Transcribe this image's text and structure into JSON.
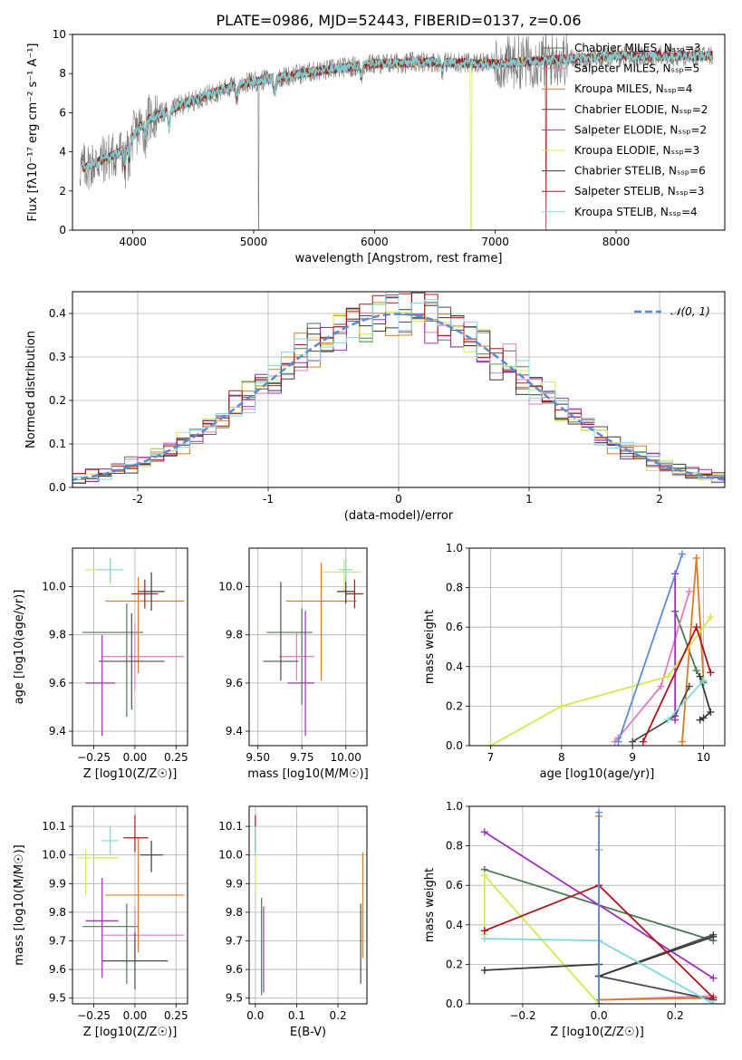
{
  "title": "PLATE=0986, MJD=52443, FIBERID=0137, z=0.06",
  "series_colors": [
    "#4c7a52",
    "#e27bc0",
    "#e07a20",
    "#4d4d4d",
    "#9e2fb8",
    "#d4e84e",
    "#3a3a3a",
    "#b0141c",
    "#7fd8dc"
  ],
  "chart_data": [
    {
      "id": "spectrum",
      "type": "line",
      "xlabel": "wavelength [Angstrom, rest frame]",
      "ylabel": "Flux [fλ10⁻¹⁷ erg cm⁻² s⁻¹ A⁻¹]",
      "xlim": [
        3500,
        8900
      ],
      "ylim": [
        0,
        10
      ],
      "xticks": [
        4000,
        5000,
        6000,
        7000,
        8000
      ],
      "yticks": [
        0,
        2,
        4,
        6,
        8,
        10
      ],
      "grid": false,
      "legend": "right",
      "continuum_anchors": [
        [
          3600,
          3.2
        ],
        [
          3900,
          4.0
        ],
        [
          4100,
          5.6
        ],
        [
          4400,
          6.4
        ],
        [
          4800,
          7.3
        ],
        [
          5000,
          7.6
        ],
        [
          5500,
          8.1
        ],
        [
          6000,
          8.5
        ],
        [
          6500,
          8.6
        ],
        [
          7000,
          8.5
        ],
        [
          7500,
          8.7
        ],
        [
          8000,
          8.9
        ],
        [
          8800,
          8.9
        ]
      ],
      "absorption_features": [
        [
          3934,
          1.2
        ],
        [
          3969,
          1.0
        ],
        [
          4101,
          0.8
        ],
        [
          4300,
          0.9
        ],
        [
          4861,
          0.7
        ],
        [
          5175,
          0.8
        ],
        [
          5890,
          0.6
        ],
        [
          6563,
          0.4
        ]
      ],
      "dropouts": [
        {
          "x": 5040,
          "series": "obs"
        },
        {
          "x": 6800,
          "series": "kroupa_elodie"
        },
        {
          "x": 7420,
          "series": "salpeter_stelib"
        }
      ],
      "series": [
        {
          "name": "Chabrier MILES, N_SSP=3"
        },
        {
          "name": "Salpeter MILES, N_SSP=5"
        },
        {
          "name": "Kroupa MILES, N_SSP=4"
        },
        {
          "name": "Chabrier ELODIE, N_SSP=2"
        },
        {
          "name": "Salpeter ELODIE, N_SSP=2"
        },
        {
          "name": "Kroupa ELODIE, N_SSP=3"
        },
        {
          "name": "Chabrier STELIB, N_SSP=6"
        },
        {
          "name": "Salpeter STELIB, N_SSP=3"
        },
        {
          "name": "Kroupa STELIB, N_SSP=4"
        }
      ]
    },
    {
      "id": "residuals",
      "type": "histogram",
      "xlabel": "(data-model)/error",
      "ylabel": "Normed distribution",
      "xlim": [
        -2.5,
        2.5
      ],
      "ylim": [
        0,
        0.45
      ],
      "xticks": [
        -2,
        -1,
        0,
        1,
        2
      ],
      "yticks": [
        0.0,
        0.1,
        0.2,
        0.3,
        0.4
      ],
      "grid": true,
      "bin_width": 0.1,
      "legend": "top-right",
      "reference_curve": {
        "name": "𝒩(0, 1)",
        "mean": 0,
        "sigma": 1
      }
    },
    {
      "id": "age-vs-Z",
      "type": "errorbar",
      "xlabel": "Z [log10(Z/Z☉)]",
      "ylabel": "age  [log10(age/yr)]",
      "xlim": [
        -0.38,
        0.32
      ],
      "ylim": [
        9.34,
        10.16
      ],
      "xticks": [
        -0.25,
        0.0,
        0.25
      ],
      "xtick_labels": [
        "−0.25",
        "0.00",
        "0.25"
      ],
      "yticks": [
        9.4,
        9.6,
        9.8,
        10.0
      ],
      "ytick_labels": [
        "9.4",
        "9.6",
        "9.8",
        "10.0"
      ],
      "grid": true,
      "points": [
        {
          "c": 0,
          "x": -0.05,
          "xerr": [
            0.27,
            0.1
          ],
          "y": 9.81,
          "yerr": [
            0.35,
            0.12
          ]
        },
        {
          "c": 1,
          "x": 0.0,
          "xerr": [
            0.2,
            0.3
          ],
          "y": 9.71,
          "yerr": [
            0.14,
            0.14
          ]
        },
        {
          "c": 2,
          "x": 0.02,
          "xerr": [
            0.2,
            0.28
          ],
          "y": 9.94,
          "yerr": [
            0.3,
            0.1
          ]
        },
        {
          "c": 3,
          "x": -0.02,
          "xerr": [
            0.2,
            0.2
          ],
          "y": 9.69,
          "yerr": [
            0.2,
            0.2
          ]
        },
        {
          "c": 4,
          "x": -0.2,
          "xerr": [
            0.1,
            0.08
          ],
          "y": 9.6,
          "yerr": [
            0.22,
            0.2
          ]
        },
        {
          "c": 5,
          "x": -0.15,
          "xerr": [
            0.15,
            0.05
          ],
          "y": 10.07,
          "yerr": [
            0.06,
            0.05
          ]
        },
        {
          "c": 6,
          "x": 0.1,
          "xerr": [
            0.08,
            0.08
          ],
          "y": 9.98,
          "yerr": [
            0.08,
            0.08
          ]
        },
        {
          "c": 7,
          "x": 0.06,
          "xerr": [
            0.08,
            0.08
          ],
          "y": 9.97,
          "yerr": [
            0.06,
            0.06
          ]
        },
        {
          "c": 8,
          "x": -0.15,
          "xerr": [
            0.08,
            0.08
          ],
          "y": 10.07,
          "yerr": [
            0.05,
            0.05
          ]
        }
      ]
    },
    {
      "id": "age-vs-mass",
      "type": "errorbar",
      "xlabel": "mass [log10(M/M☉)]",
      "xlim": [
        9.45,
        10.12
      ],
      "ylim": [
        9.34,
        10.16
      ],
      "xticks": [
        9.5,
        9.75,
        10.0
      ],
      "xtick_labels": [
        "9.50",
        "9.75",
        "10.00"
      ],
      "yticks": [
        9.4,
        9.6,
        9.8,
        10.0
      ],
      "ytick_labels": [
        "9.4",
        "9.6",
        "9.8",
        "10.0"
      ],
      "grid": true,
      "points": [
        {
          "c": 0,
          "x": 9.75,
          "xerr": [
            0.2,
            0.06
          ],
          "y": 9.81,
          "yerr": [
            0.3,
            0.1
          ]
        },
        {
          "c": 1,
          "x": 9.72,
          "xerr": [
            0.1,
            0.1
          ],
          "y": 9.71,
          "yerr": [
            0.1,
            0.1
          ]
        },
        {
          "c": 2,
          "x": 9.86,
          "xerr": [
            0.2,
            0.2
          ],
          "y": 9.94,
          "yerr": [
            0.33,
            0.16
          ]
        },
        {
          "c": 3,
          "x": 9.63,
          "xerr": [
            0.1,
            0.1
          ],
          "y": 9.69,
          "yerr": [
            0.08,
            0.33
          ]
        },
        {
          "c": 4,
          "x": 9.77,
          "xerr": [
            0.1,
            0.05
          ],
          "y": 9.6,
          "yerr": [
            0.22,
            0.3
          ]
        },
        {
          "c": 5,
          "x": 9.99,
          "xerr": [
            0.12,
            0.1
          ],
          "y": 10.06,
          "yerr": [
            0.08,
            0.05
          ]
        },
        {
          "c": 6,
          "x": 10.0,
          "xerr": [
            0.05,
            0.05
          ],
          "y": 9.98,
          "yerr": [
            0.05,
            0.06
          ]
        },
        {
          "c": 7,
          "x": 10.05,
          "xerr": [
            0.05,
            0.05
          ],
          "y": 9.97,
          "yerr": [
            0.06,
            0.06
          ]
        },
        {
          "c": 8,
          "x": 10.0,
          "xerr": [
            0.04,
            0.04
          ],
          "y": 10.07,
          "yerr": [
            0.05,
            0.05
          ]
        }
      ]
    },
    {
      "id": "weight-vs-age",
      "type": "line",
      "xlabel": "age  [log10(age/yr)]",
      "ylabel": "mass weight",
      "xlim": [
        6.7,
        10.3
      ],
      "ylim": [
        0,
        1
      ],
      "xticks": [
        7,
        8,
        9,
        10
      ],
      "yticks": [
        0.0,
        0.2,
        0.4,
        0.6,
        0.8,
        1.0
      ],
      "ytick_labels": [
        "0.0",
        "0.2",
        "0.4",
        "0.6",
        "0.8",
        "1.0"
      ],
      "grid": true,
      "series": [
        {
          "c": 0,
          "points": [
            [
              9.6,
              0.68
            ],
            [
              9.9,
              0.38
            ],
            [
              10.0,
              0.32
            ]
          ]
        },
        {
          "c": 1,
          "points": [
            [
              8.75,
              0.02
            ],
            [
              8.8,
              0.04
            ],
            [
              9.4,
              0.3
            ],
            [
              9.8,
              0.78
            ]
          ]
        },
        {
          "c": 2,
          "points": [
            [
              9.7,
              0.02
            ],
            [
              9.9,
              0.95
            ],
            [
              10.0,
              0.33
            ]
          ]
        },
        {
          "c": 3,
          "points": [
            [
              9.0,
              0.02
            ],
            [
              9.6,
              0.15
            ],
            [
              9.8,
              0.3
            ]
          ]
        },
        {
          "c": 4,
          "points": [
            [
              9.6,
              0.13
            ],
            [
              9.6,
              0.87
            ]
          ]
        },
        {
          "c": 5,
          "points": [
            [
              7.0,
              0.0
            ],
            [
              8.0,
              0.2
            ],
            [
              9.5,
              0.35
            ],
            [
              10.1,
              0.65
            ]
          ]
        },
        {
          "c": 6,
          "points": [
            [
              9.95,
              0.13
            ],
            [
              10.0,
              0.14
            ],
            [
              10.1,
              0.17
            ],
            [
              9.95,
              0.35
            ]
          ]
        },
        {
          "c": 7,
          "points": [
            [
              9.15,
              0.02
            ],
            [
              9.9,
              0.6
            ],
            [
              10.1,
              0.37
            ]
          ]
        },
        {
          "c": 8,
          "points": [
            [
              9.5,
              0.13
            ],
            [
              10.0,
              0.33
            ]
          ]
        },
        {
          "c": 9,
          "points": [
            [
              8.8,
              0.02
            ],
            [
              9.7,
              0.97
            ]
          ]
        }
      ]
    },
    {
      "id": "mass-vs-Z",
      "type": "errorbar",
      "xlabel": "Z [log10(Z/Z☉)]",
      "ylabel": "mass [log10(M/M☉)]",
      "xlim": [
        -0.38,
        0.32
      ],
      "ylim": [
        9.48,
        10.17
      ],
      "xticks": [
        -0.25,
        0.0,
        0.25
      ],
      "xtick_labels": [
        "−0.25",
        "0.00",
        "0.25"
      ],
      "yticks": [
        9.5,
        9.6,
        9.7,
        9.8,
        9.9,
        10.0,
        10.1
      ],
      "ytick_labels": [
        "9.5",
        "9.6",
        "9.7",
        "9.8",
        "9.9",
        "10.0",
        "10.1"
      ],
      "grid": true,
      "points": [
        {
          "c": 0,
          "x": -0.05,
          "xerr": [
            0.27,
            0.07
          ],
          "y": 9.75,
          "yerr": [
            0.2,
            0.08
          ]
        },
        {
          "c": 1,
          "x": 0.0,
          "xerr": [
            0.2,
            0.3
          ],
          "y": 9.72,
          "yerr": [
            0.1,
            0.1
          ]
        },
        {
          "c": 2,
          "x": 0.02,
          "xerr": [
            0.2,
            0.28
          ],
          "y": 9.86,
          "yerr": [
            0.2,
            0.2
          ]
        },
        {
          "c": 3,
          "x": 0.0,
          "xerr": [
            0.2,
            0.2
          ],
          "y": 9.63,
          "yerr": [
            0.1,
            0.1
          ]
        },
        {
          "c": 4,
          "x": -0.2,
          "xerr": [
            0.1,
            0.1
          ],
          "y": 9.77,
          "yerr": [
            0.2,
            0.15
          ]
        },
        {
          "c": 5,
          "x": -0.3,
          "xerr": [
            0.05,
            0.2
          ],
          "y": 9.99,
          "yerr": [
            0.13,
            0.03
          ]
        },
        {
          "c": 6,
          "x": 0.1,
          "xerr": [
            0.07,
            0.07
          ],
          "y": 10.0,
          "yerr": [
            0.06,
            0.05
          ]
        },
        {
          "c": 7,
          "x": 0.0,
          "xerr": [
            0.07,
            0.08
          ],
          "y": 10.06,
          "yerr": [
            0.05,
            0.08
          ]
        },
        {
          "c": 8,
          "x": -0.15,
          "xerr": [
            0.05,
            0.05
          ],
          "y": 10.05,
          "yerr": [
            0.05,
            0.05
          ]
        }
      ]
    },
    {
      "id": "mass-vs-ebv",
      "type": "errorbar",
      "xlabel": "E(B-V)",
      "xlim": [
        -0.015,
        0.27
      ],
      "ylim": [
        9.48,
        10.17
      ],
      "xticks": [
        0.0,
        0.1,
        0.2
      ],
      "xtick_labels": [
        "0.0",
        "0.1",
        "0.2"
      ],
      "yticks": [
        9.5,
        9.6,
        9.7,
        9.8,
        9.9,
        10.0,
        10.1
      ],
      "ytick_labels": [
        "9.5",
        "9.6",
        "9.7",
        "9.8",
        "9.9",
        "10.0",
        "10.1"
      ],
      "grid": true,
      "points": [
        {
          "c": 0,
          "x": 0.015,
          "xerr": [
            0,
            0
          ],
          "y": 9.75,
          "yerr": [
            0.24,
            0.1
          ]
        },
        {
          "c": 2,
          "x": 0.26,
          "xerr": [
            0,
            0
          ],
          "y": 9.86,
          "yerr": [
            0.22,
            0.15
          ]
        },
        {
          "c": 3,
          "x": 0.255,
          "xerr": [
            0,
            0
          ],
          "y": 9.7,
          "yerr": [
            0.15,
            0.13
          ]
        },
        {
          "c": 4,
          "x": 0.02,
          "xerr": [
            0,
            0
          ],
          "y": 9.72,
          "yerr": [
            0.2,
            0.1
          ]
        },
        {
          "c": 5,
          "x": 0.0,
          "xerr": [
            0,
            0
          ],
          "y": 9.99,
          "yerr": [
            0.12,
            0.05
          ]
        },
        {
          "c": 7,
          "x": 0.0,
          "xerr": [
            0,
            0
          ],
          "y": 10.07,
          "yerr": [
            0.06,
            0.07
          ]
        },
        {
          "c": 8,
          "x": 0.0,
          "xerr": [
            0,
            0
          ],
          "y": 10.05,
          "yerr": [
            0.05,
            0.05
          ]
        }
      ]
    },
    {
      "id": "weight-vs-Z",
      "type": "line",
      "xlabel": "Z [log10(Z/Z☉)]",
      "ylabel": "mass weight",
      "xlim": [
        -0.34,
        0.33
      ],
      "ylim": [
        0,
        1
      ],
      "xticks": [
        -0.2,
        0.0,
        0.2
      ],
      "xtick_labels": [
        "−0.2",
        "0.0",
        "0.2"
      ],
      "yticks": [
        0.0,
        0.2,
        0.4,
        0.6,
        0.8,
        1.0
      ],
      "ytick_labels": [
        "0.0",
        "0.2",
        "0.4",
        "0.6",
        "0.8",
        "1.0"
      ],
      "grid": true,
      "series": [
        {
          "c": 0,
          "points": [
            [
              -0.3,
              0.68
            ],
            [
              0.3,
              0.32
            ]
          ]
        },
        {
          "c": 1,
          "points": [
            [
              0.0,
              0.78
            ],
            [
              0.0,
              0.02
            ],
            [
              0.3,
              0.04
            ]
          ]
        },
        {
          "c": 2,
          "points": [
            [
              0.0,
              0.95
            ],
            [
              0.0,
              0.02
            ],
            [
              0.3,
              0.03
            ]
          ]
        },
        {
          "c": 3,
          "points": [
            [
              0.3,
              0.35
            ],
            [
              0.0,
              0.14
            ],
            [
              0.3,
              0.02
            ]
          ]
        },
        {
          "c": 4,
          "points": [
            [
              -0.3,
              0.87
            ],
            [
              0.3,
              0.13
            ]
          ]
        },
        {
          "c": 5,
          "points": [
            [
              -0.3,
              0.35
            ],
            [
              -0.3,
              0.65
            ],
            [
              0.0,
              0.0
            ]
          ]
        },
        {
          "c": 6,
          "points": [
            [
              -0.3,
              0.17
            ],
            [
              0.0,
              0.2
            ],
            [
              0.0,
              0.14
            ],
            [
              0.3,
              0.34
            ]
          ]
        },
        {
          "c": 7,
          "points": [
            [
              -0.3,
              0.37
            ],
            [
              0.0,
              0.6
            ],
            [
              0.3,
              0.03
            ]
          ]
        },
        {
          "c": 8,
          "points": [
            [
              -0.3,
              0.33
            ],
            [
              0.0,
              0.32
            ],
            [
              0.3,
              0.0
            ]
          ]
        },
        {
          "c": 9,
          "points": [
            [
              0.0,
              0.97
            ],
            [
              0.0,
              0.0
            ]
          ]
        }
      ]
    }
  ]
}
